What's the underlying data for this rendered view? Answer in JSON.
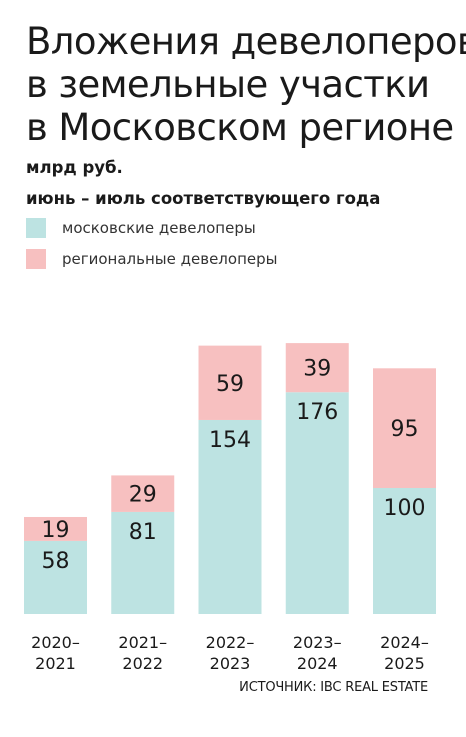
{
  "colors": {
    "moscow": "#bde3e2",
    "regional": "#f7c0c0"
  },
  "chart_data": {
    "type": "bar",
    "stacked": true,
    "title": "Вложения девелоперов в земельные участки в Московском регионе",
    "title_lines": [
      "Вложения девелоперов",
      "в земельные участки",
      "в Московском регионе"
    ],
    "subtitle_lines": [
      "млрд руб.",
      "июнь – июль соответствующего года"
    ],
    "categories": [
      "2020–2021",
      "2021–2022",
      "2022–2023",
      "2023–2024",
      "2024–2025"
    ],
    "category_lines": [
      [
        "2020–",
        "2021"
      ],
      [
        "2021–",
        "2022"
      ],
      [
        "2022–",
        "2023"
      ],
      [
        "2023–",
        "2024"
      ],
      [
        "2024–",
        "2025"
      ]
    ],
    "series": [
      {
        "name": "московские девелоперы",
        "values": [
          58,
          81,
          154,
          176,
          100
        ]
      },
      {
        "name": "региональные девелоперы",
        "values": [
          19,
          29,
          59,
          39,
          95
        ]
      }
    ],
    "ylim": [
      0,
      215
    ],
    "grid": false,
    "legend_position": "top-left",
    "source": "ИСТОЧНИК: IBC REAL ESTATE"
  }
}
